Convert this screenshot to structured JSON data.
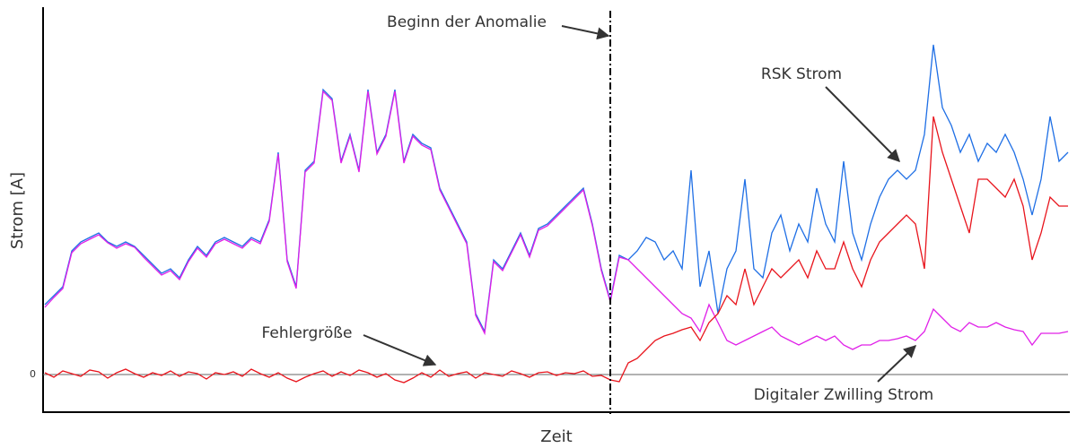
{
  "chart_data": {
    "type": "line",
    "x_label": "Zeit",
    "y_label": "Strom [A]",
    "annotation": "Beginn der Anomalie",
    "vline_x": 63,
    "xlim": [
      0,
      114
    ],
    "ylim": [
      -42,
      408
    ],
    "yticks": [
      0
    ],
    "zero_line": true,
    "series": [
      {
        "name": "RSK Strom",
        "color": "#1f6fe5",
        "values": [
          78,
          88,
          98,
          138,
          148,
          153,
          158,
          148,
          143,
          148,
          143,
          133,
          123,
          113,
          118,
          108,
          128,
          143,
          133,
          148,
          153,
          148,
          143,
          153,
          148,
          173,
          248,
          128,
          98,
          228,
          238,
          318,
          308,
          238,
          268,
          228,
          318,
          248,
          268,
          318,
          238,
          268,
          258,
          253,
          208,
          188,
          168,
          148,
          68,
          48,
          128,
          118,
          138,
          158,
          133,
          163,
          168,
          178,
          188,
          198,
          208,
          168,
          118,
          83,
          133,
          128,
          138,
          153,
          148,
          128,
          138,
          118,
          228,
          98,
          138,
          68,
          118,
          138,
          218,
          118,
          108,
          158,
          178,
          138,
          168,
          148,
          208,
          168,
          148,
          238,
          158,
          128,
          168,
          198,
          218,
          228,
          218,
          228,
          268,
          368,
          298,
          278,
          248,
          268,
          238,
          258,
          248,
          268,
          248,
          218,
          178,
          218,
          288,
          238,
          248
        ]
      },
      {
        "name": "Digitaler Zwilling Strom",
        "color": "#e020e8",
        "values": [
          75,
          86,
          96,
          136,
          146,
          151,
          156,
          147,
          141,
          146,
          142,
          131,
          121,
          111,
          116,
          106,
          126,
          141,
          131,
          146,
          151,
          146,
          141,
          151,
          146,
          171,
          246,
          126,
          96,
          226,
          236,
          316,
          306,
          236,
          266,
          226,
          316,
          246,
          266,
          316,
          236,
          266,
          256,
          251,
          206,
          186,
          166,
          146,
          66,
          46,
          126,
          116,
          136,
          156,
          131,
          161,
          166,
          176,
          186,
          196,
          206,
          166,
          116,
          81,
          131,
          128,
          118,
          108,
          98,
          88,
          78,
          68,
          63,
          48,
          78,
          58,
          38,
          33,
          38,
          43,
          48,
          53,
          43,
          38,
          33,
          38,
          43,
          38,
          43,
          33,
          28,
          33,
          33,
          38,
          38,
          40,
          43,
          38,
          48,
          73,
          63,
          53,
          48,
          58,
          53,
          53,
          58,
          53,
          50,
          48,
          33,
          46,
          46,
          46,
          48
        ]
      },
      {
        "name": "Fehlergröße",
        "color": "#e8141c",
        "values": [
          2,
          -3,
          4,
          1,
          -2,
          5,
          3,
          -4,
          2,
          6,
          1,
          -3,
          2,
          -1,
          4,
          -2,
          3,
          1,
          -5,
          2,
          0,
          3,
          -2,
          6,
          1,
          -3,
          2,
          -4,
          -8,
          -3,
          1,
          4,
          -2,
          3,
          -1,
          5,
          2,
          -3,
          1,
          -6,
          -9,
          -4,
          2,
          -3,
          5,
          -2,
          1,
          3,
          -4,
          2,
          0,
          -2,
          4,
          1,
          -3,
          2,
          3,
          -1,
          2,
          1,
          4,
          -2,
          -1,
          -6,
          -8,
          13,
          18,
          28,
          38,
          43,
          46,
          50,
          53,
          38,
          58,
          68,
          88,
          78,
          118,
          78,
          98,
          118,
          108,
          118,
          128,
          108,
          138,
          118,
          118,
          148,
          118,
          98,
          128,
          148,
          158,
          168,
          178,
          168,
          118,
          288,
          248,
          218,
          188,
          158,
          218,
          218,
          208,
          198,
          218,
          188,
          128,
          158,
          198,
          188,
          188
        ]
      }
    ]
  }
}
